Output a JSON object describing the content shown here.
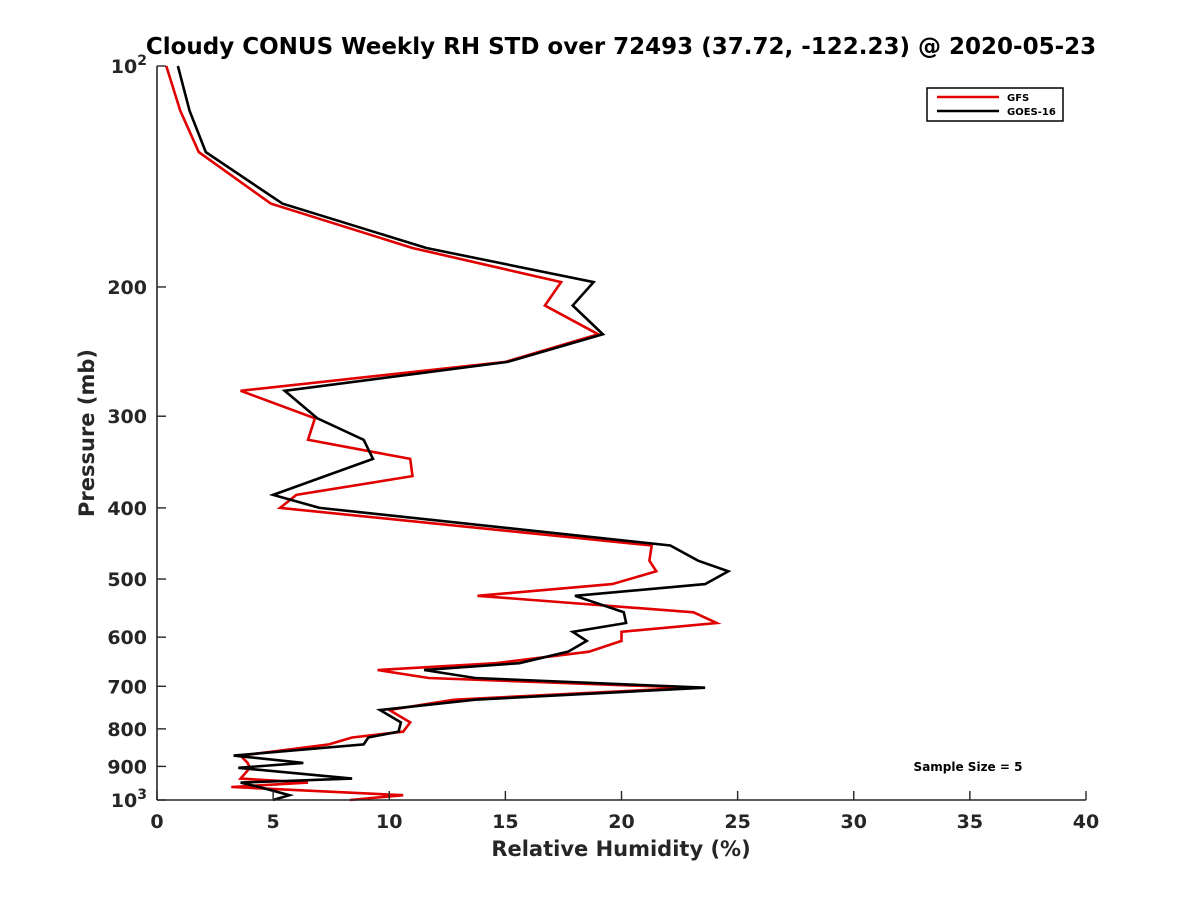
{
  "chart_data": {
    "type": "line",
    "title": "Cloudy CONUS Weekly RH STD over 72493 (37.72, -122.23) @ 2020-05-23",
    "xlabel": "Relative Humidity (%)",
    "ylabel": "Pressure (mb)",
    "xlim": [
      0,
      40
    ],
    "ylim": [
      100,
      1000
    ],
    "y_scale": "log",
    "y_reversed": true,
    "x_ticks": [
      0,
      5,
      10,
      15,
      20,
      25,
      30,
      35,
      40
    ],
    "y_ticks": [
      100,
      200,
      300,
      400,
      500,
      600,
      700,
      800,
      900,
      1000
    ],
    "y_tick_labels": {
      "100": {
        "base": "10",
        "exp": "2"
      },
      "1000": {
        "base": "10",
        "exp": "3"
      }
    },
    "grid": false,
    "legend_position": "top-right",
    "annotation": "Sample Size = 5",
    "series": [
      {
        "name": "GFS",
        "color": "#e00000",
        "points": [
          [
            0.4,
            100
          ],
          [
            1.0,
            115
          ],
          [
            1.8,
            131
          ],
          [
            4.9,
            154
          ],
          [
            11.0,
            177
          ],
          [
            17.4,
            197
          ],
          [
            16.7,
            212
          ],
          [
            19.0,
            232
          ],
          [
            15.0,
            253
          ],
          [
            3.6,
            277
          ],
          [
            6.8,
            302
          ],
          [
            6.5,
            323
          ],
          [
            10.9,
            343
          ],
          [
            11.0,
            362
          ],
          [
            6.0,
            384
          ],
          [
            5.3,
            400
          ],
          [
            21.3,
            450
          ],
          [
            21.2,
            472
          ],
          [
            21.5,
            488
          ],
          [
            19.6,
            508
          ],
          [
            13.8,
            527
          ],
          [
            23.1,
            555
          ],
          [
            24.1,
            574
          ],
          [
            20.0,
            590
          ],
          [
            20.0,
            607
          ],
          [
            18.6,
            628
          ],
          [
            14.6,
            651
          ],
          [
            9.5,
            665
          ],
          [
            11.7,
            682
          ],
          [
            23.0,
            703
          ],
          [
            12.8,
            730
          ],
          [
            10.0,
            754
          ],
          [
            10.9,
            784
          ],
          [
            10.6,
            807
          ],
          [
            8.4,
            822
          ],
          [
            7.4,
            840
          ],
          [
            3.6,
            870
          ],
          [
            3.9,
            890
          ],
          [
            4.0,
            904
          ],
          [
            3.6,
            935
          ],
          [
            6.5,
            947
          ],
          [
            3.2,
            960
          ],
          [
            10.6,
            985
          ],
          [
            8.3,
            1000
          ]
        ]
      },
      {
        "name": "GOES-16",
        "color": "#000000",
        "points": [
          [
            0.9,
            100
          ],
          [
            1.4,
            115
          ],
          [
            2.1,
            131
          ],
          [
            5.4,
            154
          ],
          [
            11.6,
            177
          ],
          [
            18.8,
            197
          ],
          [
            17.9,
            212
          ],
          [
            19.2,
            232
          ],
          [
            15.1,
            253
          ],
          [
            5.5,
            277
          ],
          [
            6.9,
            302
          ],
          [
            8.9,
            323
          ],
          [
            9.3,
            343
          ],
          [
            5.0,
            384
          ],
          [
            7.0,
            400
          ],
          [
            22.1,
            450
          ],
          [
            23.3,
            472
          ],
          [
            24.6,
            488
          ],
          [
            23.6,
            508
          ],
          [
            18.0,
            527
          ],
          [
            20.1,
            555
          ],
          [
            20.2,
            574
          ],
          [
            17.9,
            590
          ],
          [
            18.5,
            607
          ],
          [
            17.7,
            628
          ],
          [
            15.6,
            651
          ],
          [
            11.5,
            665
          ],
          [
            13.7,
            682
          ],
          [
            23.6,
            703
          ],
          [
            13.7,
            730
          ],
          [
            9.6,
            754
          ],
          [
            10.5,
            784
          ],
          [
            10.4,
            807
          ],
          [
            9.1,
            822
          ],
          [
            8.9,
            840
          ],
          [
            3.3,
            870
          ],
          [
            6.3,
            890
          ],
          [
            3.5,
            904
          ],
          [
            8.4,
            935
          ],
          [
            3.6,
            947
          ],
          [
            4.4,
            960
          ],
          [
            5.7,
            985
          ],
          [
            5.0,
            1000
          ]
        ]
      }
    ]
  }
}
